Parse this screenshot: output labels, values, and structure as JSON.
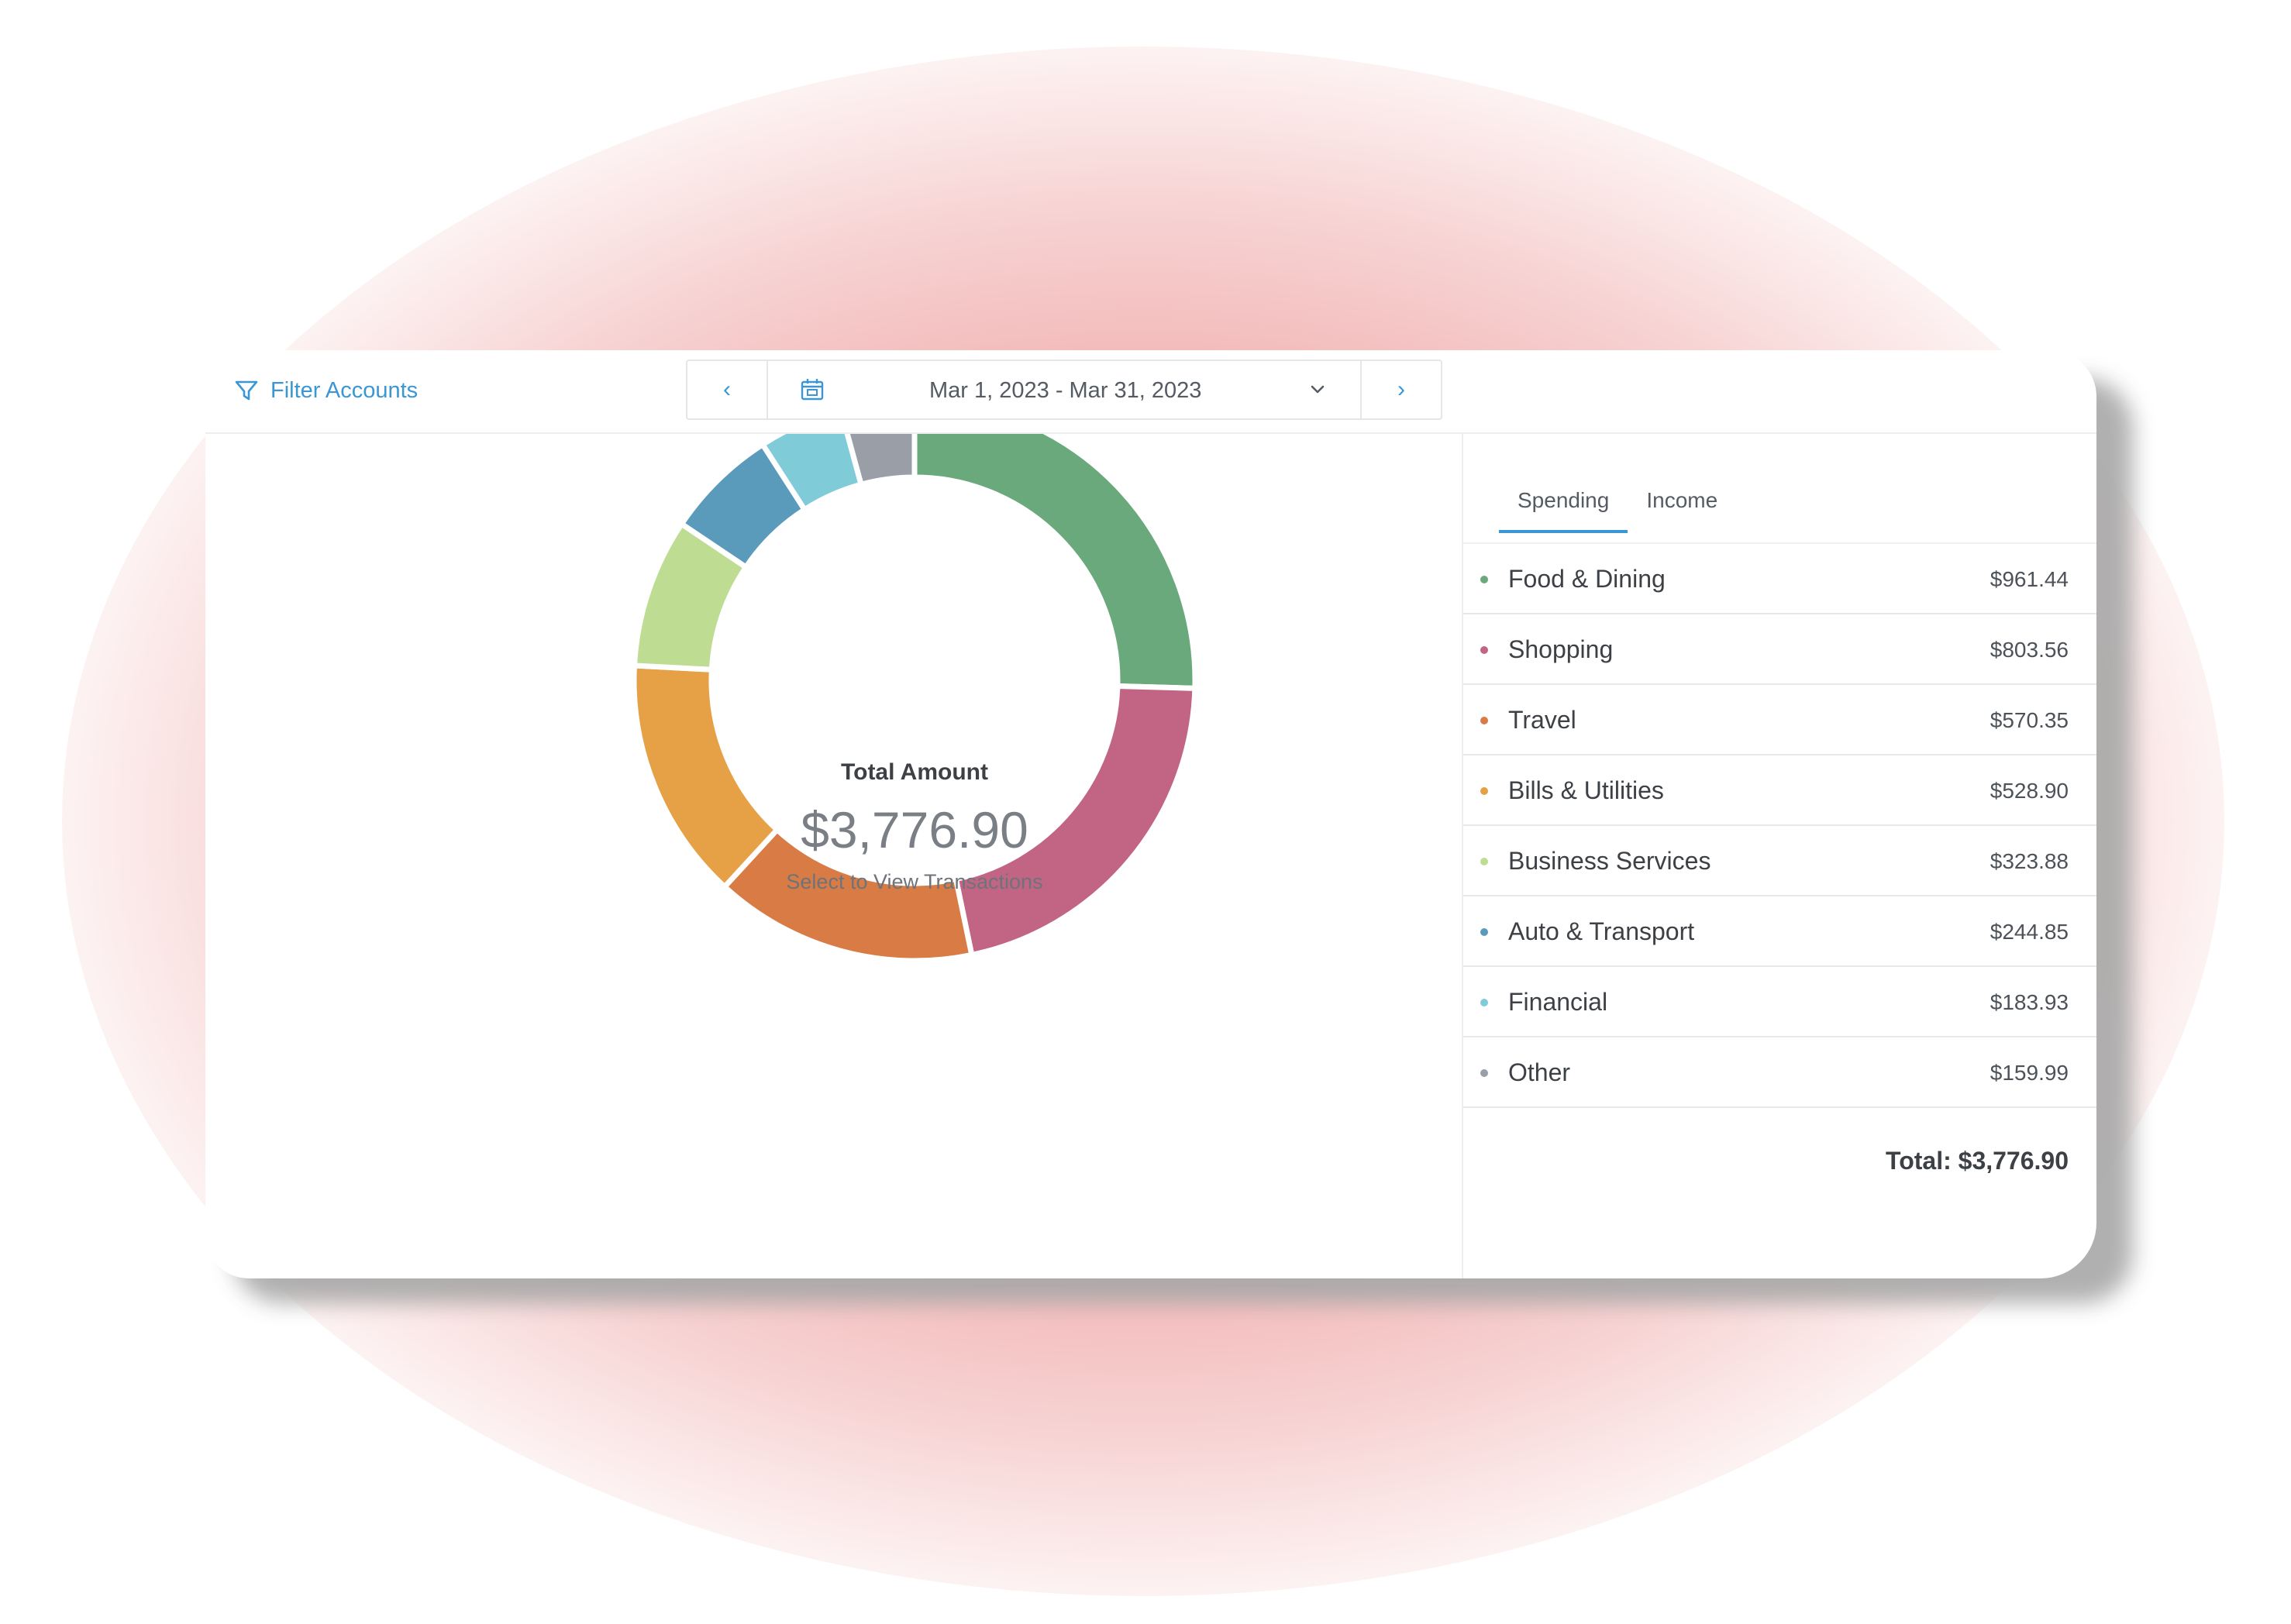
{
  "toolbar": {
    "filter_label": "Filter Accounts",
    "filter_icon": "filter-icon",
    "date_range": "Mar 1, 2023 - Mar 31, 2023",
    "prev_label": "‹",
    "next_label": "›",
    "calendar_icon": "calendar-icon",
    "caret_icon": "chevron-down-icon"
  },
  "summary": {
    "title": "Total Amount",
    "amount": "$3,776.90",
    "hint": "Select to View Transactions"
  },
  "tabs": [
    {
      "label": "Spending",
      "active": true
    },
    {
      "label": "Income",
      "active": false
    }
  ],
  "categories": [
    {
      "name": "Food & Dining",
      "amount": "$961.44",
      "color": "#6aa97c"
    },
    {
      "name": "Shopping",
      "amount": "$803.56",
      "color": "#c26584"
    },
    {
      "name": "Travel",
      "amount": "$570.35",
      "color": "#d97b45"
    },
    {
      "name": "Bills & Utilities",
      "amount": "$528.90",
      "color": "#e6a146"
    },
    {
      "name": "Business Services",
      "amount": "$323.88",
      "color": "#bedd93"
    },
    {
      "name": "Auto & Transport",
      "amount": "$244.85",
      "color": "#5a9bbc"
    },
    {
      "name": "Financial",
      "amount": "$183.93",
      "color": "#80cbd8"
    },
    {
      "name": "Other",
      "amount": "$159.99",
      "color": "#9a9ea6"
    }
  ],
  "total_label": "Total: $3,776.90",
  "chart_data": {
    "type": "pie",
    "categories": [
      "Food & Dining",
      "Shopping",
      "Travel",
      "Bills & Utilities",
      "Business Services",
      "Auto & Transport",
      "Financial",
      "Other"
    ],
    "values": [
      961.44,
      803.56,
      570.35,
      528.9,
      323.88,
      244.85,
      183.93,
      159.99
    ],
    "colors": [
      "#6aa97c",
      "#c26584",
      "#d97b45",
      "#e6a146",
      "#bedd93",
      "#5a9bbc",
      "#80cbd8",
      "#9a9ea6"
    ],
    "donut": true
  }
}
